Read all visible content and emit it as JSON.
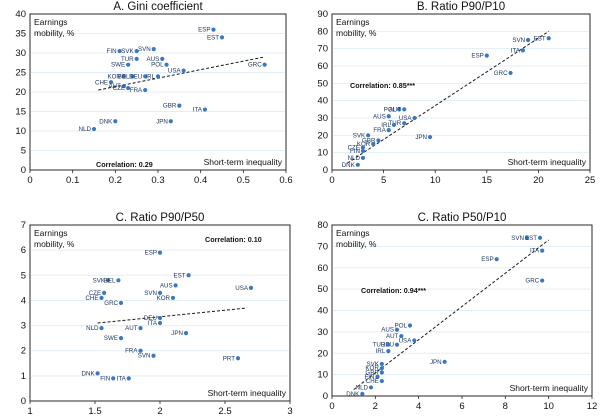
{
  "colors": {
    "point": "#3a78c2",
    "grid": "#e2eef6",
    "plot_bg": "#ffffff",
    "trend": "#1a1a1a"
  },
  "chart_data": [
    {
      "type": "scatter",
      "title": "A. Gini coefficient",
      "ylabel_line1": "Earnings",
      "ylabel_line2": "mobility, %",
      "xlabel": "Short-term inequality",
      "correlation": "Correlation: 0.29",
      "xlim": [
        0,
        0.6
      ],
      "ylim": [
        0,
        40
      ],
      "xticks": [
        "0",
        "0.1",
        "0.2",
        "0.3",
        "0.4",
        "0.5",
        "0.6"
      ],
      "yticks": [
        "0",
        "5",
        "10",
        "15",
        "20",
        "25",
        "30",
        "35",
        "40"
      ],
      "grid": true,
      "trend": {
        "x": [
          0.16,
          0.55
        ],
        "y": [
          20.5,
          29
        ]
      },
      "points": [
        {
          "label": "ESP",
          "x": 0.43,
          "y": 36
        },
        {
          "label": "EST",
          "x": 0.45,
          "y": 34
        },
        {
          "label": "FIN",
          "x": 0.21,
          "y": 30.5
        },
        {
          "label": "SVK",
          "x": 0.25,
          "y": 30.5
        },
        {
          "label": "SVN",
          "x": 0.29,
          "y": 31
        },
        {
          "label": "TUR",
          "x": 0.25,
          "y": 28.5
        },
        {
          "label": "AUS",
          "x": 0.31,
          "y": 28.5
        },
        {
          "label": "SWE",
          "x": 0.23,
          "y": 27
        },
        {
          "label": "POL",
          "x": 0.32,
          "y": 27
        },
        {
          "label": "GRC",
          "x": 0.55,
          "y": 27
        },
        {
          "label": "USA",
          "x": 0.36,
          "y": 25.5
        },
        {
          "label": "KOR",
          "x": 0.22,
          "y": 24
        },
        {
          "label": "BEL",
          "x": 0.24,
          "y": 24
        },
        {
          "label": "DEU",
          "x": 0.27,
          "y": 24
        },
        {
          "label": "IRL",
          "x": 0.3,
          "y": 24
        },
        {
          "label": "CHE",
          "x": 0.19,
          "y": 22.5
        },
        {
          "label": "AUT",
          "x": 0.22,
          "y": 21.5
        },
        {
          "label": "CZE",
          "x": 0.23,
          "y": 21
        },
        {
          "label": "FRA",
          "x": 0.27,
          "y": 20.5
        },
        {
          "label": "GBR",
          "x": 0.35,
          "y": 16.5
        },
        {
          "label": "ITA",
          "x": 0.41,
          "y": 15.5
        },
        {
          "label": "JPN",
          "x": 0.33,
          "y": 12.5
        },
        {
          "label": "DNK",
          "x": 0.2,
          "y": 12.5
        },
        {
          "label": "NLD",
          "x": 0.15,
          "y": 10.5
        }
      ]
    },
    {
      "type": "scatter",
      "title": "B. Ratio P90/P10",
      "ylabel_line1": "Earnings",
      "ylabel_line2": "mobility, %",
      "xlabel": "Short-term inequality",
      "correlation": "Correlation: 0.85***",
      "xlim": [
        0,
        25
      ],
      "ylim": [
        0,
        90
      ],
      "xticks": [
        "0",
        "5",
        "10",
        "15",
        "20",
        "25"
      ],
      "yticks": [
        "0",
        "10",
        "20",
        "30",
        "40",
        "50",
        "60",
        "70",
        "80",
        "90"
      ],
      "grid": true,
      "trend": {
        "x": [
          1.5,
          21
        ],
        "y": [
          4,
          80
        ]
      },
      "points": [
        {
          "label": "SVN",
          "x": 19,
          "y": 75
        },
        {
          "label": "EST",
          "x": 21,
          "y": 76
        },
        {
          "label": "ITA",
          "x": 18.5,
          "y": 69
        },
        {
          "label": "ESP",
          "x": 15,
          "y": 66
        },
        {
          "label": "GRC",
          "x": 17.3,
          "y": 56
        },
        {
          "label": "POL",
          "x": 6.5,
          "y": 35
        },
        {
          "label": "AUT",
          "x": 7,
          "y": 35
        },
        {
          "label": "AUS",
          "x": 5.5,
          "y": 31
        },
        {
          "label": "USA",
          "x": 8,
          "y": 30
        },
        {
          "label": "TUR",
          "x": 7,
          "y": 27
        },
        {
          "label": "IRL",
          "x": 6,
          "y": 26
        },
        {
          "label": "FRA",
          "x": 5.5,
          "y": 23
        },
        {
          "label": "JPN",
          "x": 9.5,
          "y": 19
        },
        {
          "label": "SVK",
          "x": 3.5,
          "y": 20
        },
        {
          "label": "GBR",
          "x": 4.5,
          "y": 17
        },
        {
          "label": "KOR",
          "x": 4,
          "y": 15
        },
        {
          "label": "CZE",
          "x": 3,
          "y": 13
        },
        {
          "label": "FIN",
          "x": 3,
          "y": 11
        },
        {
          "label": "NLD",
          "x": 3,
          "y": 7
        },
        {
          "label": "DNK",
          "x": 2.5,
          "y": 3
        }
      ]
    },
    {
      "type": "scatter",
      "title": "C. Ratio P90/P50",
      "ylabel_line1": "Earnings",
      "ylabel_line2": "mobility, %",
      "xlabel": "Short-term inequality",
      "correlation": "Correlation: 0.10",
      "xlim": [
        1,
        3
      ],
      "ylim": [
        0,
        7
      ],
      "xticks": [
        "1",
        "1.5",
        "2",
        "2.5",
        "3"
      ],
      "yticks": [
        "0",
        "1",
        "2",
        "3",
        "4",
        "5",
        "6",
        "7"
      ],
      "grid": true,
      "trend": {
        "x": [
          1.52,
          2.67
        ],
        "y": [
          3.1,
          3.7
        ]
      },
      "points": [
        {
          "label": "ESP",
          "x": 2.0,
          "y": 5.9
        },
        {
          "label": "EST",
          "x": 2.22,
          "y": 5.0
        },
        {
          "label": "SVK",
          "x": 1.6,
          "y": 4.8
        },
        {
          "label": "BEL",
          "x": 1.68,
          "y": 4.8
        },
        {
          "label": "AUS",
          "x": 2.12,
          "y": 4.6
        },
        {
          "label": "USA",
          "x": 2.7,
          "y": 4.5
        },
        {
          "label": "CZE",
          "x": 1.57,
          "y": 4.3
        },
        {
          "label": "SVN",
          "x": 2.0,
          "y": 4.3
        },
        {
          "label": "CHE",
          "x": 1.55,
          "y": 4.1
        },
        {
          "label": "KOR",
          "x": 2.1,
          "y": 4.1
        },
        {
          "label": "GRC",
          "x": 1.7,
          "y": 3.9
        },
        {
          "label": "DEU",
          "x": 2.0,
          "y": 3.3
        },
        {
          "label": "ITA",
          "x": 2.0,
          "y": 3.1
        },
        {
          "label": "NLD",
          "x": 1.55,
          "y": 2.9
        },
        {
          "label": "AUT",
          "x": 1.85,
          "y": 2.9
        },
        {
          "label": "JPN",
          "x": 2.2,
          "y": 2.7
        },
        {
          "label": "SWE",
          "x": 1.7,
          "y": 2.5
        },
        {
          "label": "FRA",
          "x": 1.85,
          "y": 2.0
        },
        {
          "label": "SVN",
          "x": 1.95,
          "y": 1.8
        },
        {
          "label": "PRT",
          "x": 2.6,
          "y": 1.7
        },
        {
          "label": "DNK",
          "x": 1.52,
          "y": 1.1
        },
        {
          "label": "FIN",
          "x": 1.64,
          "y": 0.9
        },
        {
          "label": "ITA",
          "x": 1.76,
          "y": 0.9
        }
      ]
    },
    {
      "type": "scatter",
      "title": "C. Ratio P50/P10",
      "ylabel_line1": "Earnings",
      "ylabel_line2": "mobility, %",
      "xlabel": "Short-term inequality",
      "correlation": "Correlation: 0.94***",
      "xlim": [
        0,
        12
      ],
      "ylim": [
        0,
        80
      ],
      "xticks": [
        "0",
        "2",
        "4",
        "6",
        "8",
        "10",
        "12"
      ],
      "yticks": [
        "0",
        "10",
        "20",
        "30",
        "40",
        "50",
        "60",
        "70",
        "80"
      ],
      "grid": true,
      "trend": {
        "x": [
          1.0,
          10.0
        ],
        "y": [
          3,
          73
        ]
      },
      "points": [
        {
          "label": "SVN",
          "x": 9.0,
          "y": 74
        },
        {
          "label": "EST",
          "x": 9.6,
          "y": 74
        },
        {
          "label": "ITA",
          "x": 9.7,
          "y": 68
        },
        {
          "label": "ESP",
          "x": 7.6,
          "y": 64
        },
        {
          "label": "GRC",
          "x": 9.7,
          "y": 54
        },
        {
          "label": "POL",
          "x": 3.6,
          "y": 33
        },
        {
          "label": "AUS",
          "x": 3.0,
          "y": 31
        },
        {
          "label": "AUT",
          "x": 3.2,
          "y": 28
        },
        {
          "label": "DEU",
          "x": 3.0,
          "y": 24
        },
        {
          "label": "TUR",
          "x": 2.6,
          "y": 24
        },
        {
          "label": "USA",
          "x": 3.8,
          "y": 26
        },
        {
          "label": "IRL",
          "x": 2.6,
          "y": 21
        },
        {
          "label": "JPN",
          "x": 5.2,
          "y": 16
        },
        {
          "label": "SVK",
          "x": 2.3,
          "y": 15
        },
        {
          "label": "KOR",
          "x": 2.3,
          "y": 13
        },
        {
          "label": "GBR",
          "x": 2.3,
          "y": 11
        },
        {
          "label": "FIN",
          "x": 2.1,
          "y": 9
        },
        {
          "label": "CHE",
          "x": 2.3,
          "y": 7
        },
        {
          "label": "NLD",
          "x": 1.8,
          "y": 4
        },
        {
          "label": "DNK",
          "x": 1.4,
          "y": 1
        }
      ]
    }
  ]
}
